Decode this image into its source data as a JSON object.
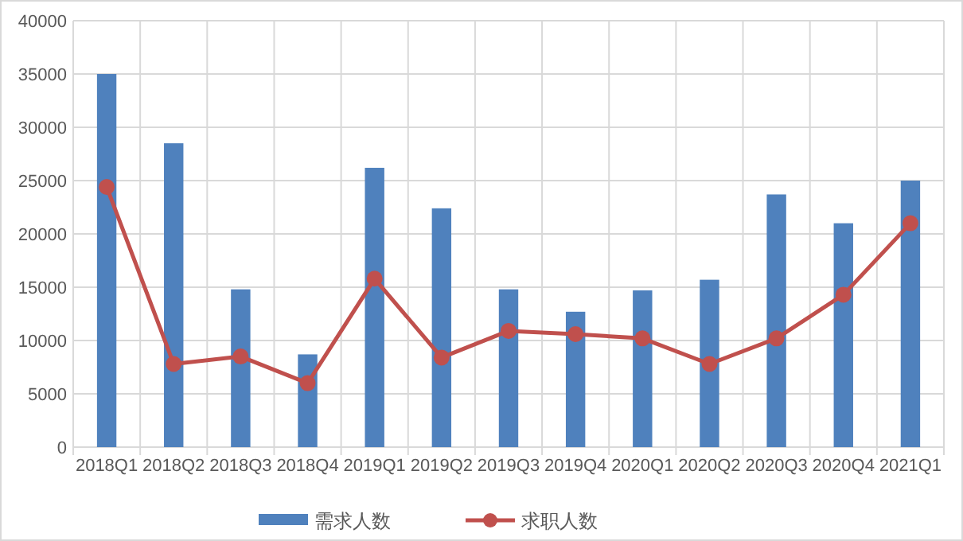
{
  "chart_data": {
    "type": "bar",
    "categories": [
      "2018Q1",
      "2018Q2",
      "2018Q3",
      "2018Q4",
      "2019Q1",
      "2019Q2",
      "2019Q3",
      "2019Q4",
      "2020Q1",
      "2020Q2",
      "2020Q3",
      "2020Q4",
      "2021Q1"
    ],
    "series": [
      {
        "name": "需求人数",
        "color": "#4f81bd",
        "values": [
          35000,
          28500,
          14800,
          8700,
          26200,
          22400,
          14800,
          12700,
          14700,
          15700,
          23700,
          21000,
          25000
        ]
      },
      {
        "name": "求职人数",
        "type": "line",
        "color": "#c0504d",
        "marker": "circle",
        "values": [
          24400,
          7800,
          8500,
          6000,
          15800,
          8400,
          10900,
          10600,
          10200,
          7800,
          10200,
          14300,
          21000
        ]
      }
    ],
    "ylim": [
      0,
      40000
    ],
    "yticks": [
      0,
      5000,
      10000,
      15000,
      20000,
      25000,
      30000,
      35000,
      40000
    ],
    "grid": true,
    "legend": "bottom"
  }
}
